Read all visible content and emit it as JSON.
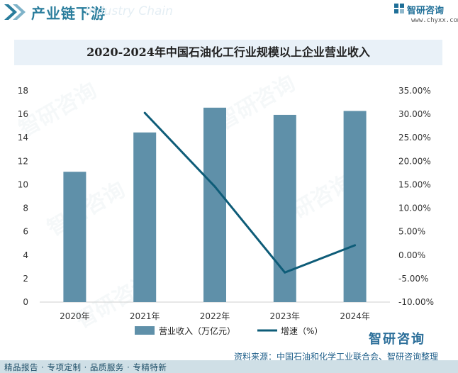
{
  "header": {
    "section_title": "产业链下游",
    "section_ghost": "Industry Chain",
    "brand": "智研咨询",
    "brand_url": "www.chyxx.com"
  },
  "colors": {
    "bar": "#5f90a9",
    "line": "#0e5c78",
    "accent": "#2a7d9c",
    "title_bg": "#e9f1f8"
  },
  "chart_data": {
    "type": "bar",
    "title": "2020-2024年中国石油化工行业规模以上企业营业收入",
    "categories": [
      "2020年",
      "2021年",
      "2022年",
      "2023年",
      "2024年"
    ],
    "series": [
      {
        "name": "营业收入（万亿元）",
        "type": "bar",
        "axis": "left",
        "values": [
          11.1,
          14.45,
          16.56,
          15.95,
          16.28
        ]
      },
      {
        "name": "增速（%）",
        "type": "line",
        "axis": "right",
        "values": [
          null,
          30.3,
          14.6,
          -3.7,
          2.1
        ]
      }
    ],
    "left_axis": {
      "ylim": [
        0,
        18
      ],
      "ticks": [
        "0",
        "2",
        "4",
        "6",
        "8",
        "10",
        "12",
        "14",
        "16",
        "18"
      ]
    },
    "right_axis": {
      "ylim": [
        -10,
        35
      ],
      "ticks": [
        "-10.00%",
        "-5.00%",
        "0.00%",
        "5.00%",
        "10.00%",
        "15.00%",
        "20.00%",
        "25.00%",
        "30.00%",
        "35.00%"
      ]
    },
    "grid": false,
    "legend_position": "bottom"
  },
  "footer": {
    "source": "资料来源：中国石油和化学工业联合会、智研咨询整理",
    "left_text": "精品报告 · 专项定制 · 品质服务 · 专精特新",
    "brand": "智研咨询"
  },
  "watermark": "智研咨询"
}
